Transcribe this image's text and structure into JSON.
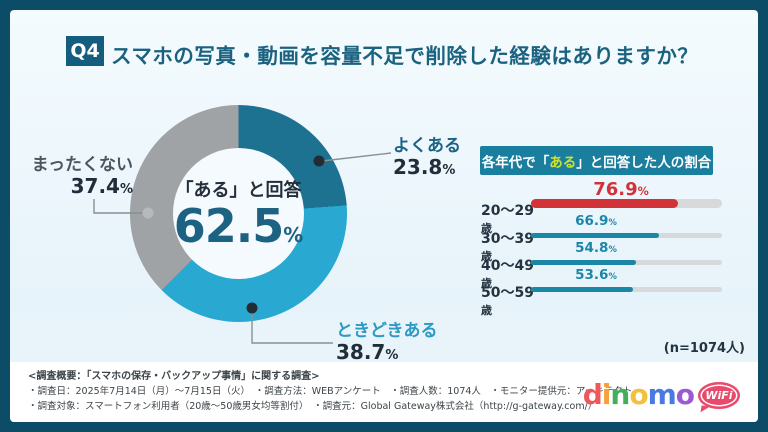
{
  "ui": {
    "percent": "%"
  },
  "header": {
    "badge": "Q4",
    "title": "スマホの写真・動画を容量不足で削除した経験はありますか？"
  },
  "chart_data": [
    {
      "type": "pie",
      "subtype": "donut",
      "start_angle_deg": 0,
      "direction": "clockwise",
      "center": {
        "label": "「ある」と回答",
        "value": "62.5",
        "unit": "%"
      },
      "slices": [
        {
          "label": "よくある",
          "value": 23.8,
          "color": "#1e7291"
        },
        {
          "label": "ときどきある",
          "value": 38.7,
          "color": "#29a8d2"
        },
        {
          "label": "まったくない",
          "value": 37.4,
          "color": "#9fa3a6"
        }
      ]
    },
    {
      "type": "bar",
      "title_prefix": "各年代で「",
      "title_highlight": "ある",
      "title_suffix": "」と回答した人の割合",
      "categories": [
        "20〜29歳",
        "30〜39歳",
        "40〜49歳",
        "50〜59歳"
      ],
      "values": [
        76.9,
        66.9,
        54.8,
        53.6
      ],
      "xlim": [
        0,
        100
      ],
      "bar_colors": [
        "#d13338",
        "#1a87a7",
        "#1a87a7",
        "#1a87a7"
      ],
      "track_color": "#d7d9da",
      "highlight_title_color": "#cfe32d",
      "note": "(n=1074人)"
    }
  ],
  "footnote": {
    "lines": [
      "<調査概要：「スマホの保存・バックアップ事情」に関する調査>",
      "・調査日：2025年7月14日（月）〜7月15日（火）　・調査方法：WEBアンケート　・調査人数：1074人　・モニター提供元：アーキテクト",
      "・調査対象：スマートフォン利用者（20歳〜50歳男女均等割付）　・調査元：Global Gateway株式会社（http://g-gateway.com/）"
    ]
  },
  "logo": {
    "letters": [
      {
        "char": "d",
        "color": "#ee585b"
      },
      {
        "char": "i",
        "color": "#f6a13c"
      },
      {
        "char": "n",
        "color": "#45ae5c"
      },
      {
        "char": "o",
        "color": "#f3c03c"
      },
      {
        "char": "m",
        "color": "#4b79e4"
      },
      {
        "char": "o",
        "color": "#9c5ad2"
      }
    ],
    "wifi_label": "WiFi",
    "wifi_color": "#e84a6b"
  },
  "colors": {
    "frame": "#0d4c66",
    "content_bg": "#eaf5fb",
    "q_badge_bg": "#135e7e",
    "title_text": "#1a6280",
    "panel_header_bg": "#1a7e9e",
    "center_value_text": "#1d6183"
  }
}
